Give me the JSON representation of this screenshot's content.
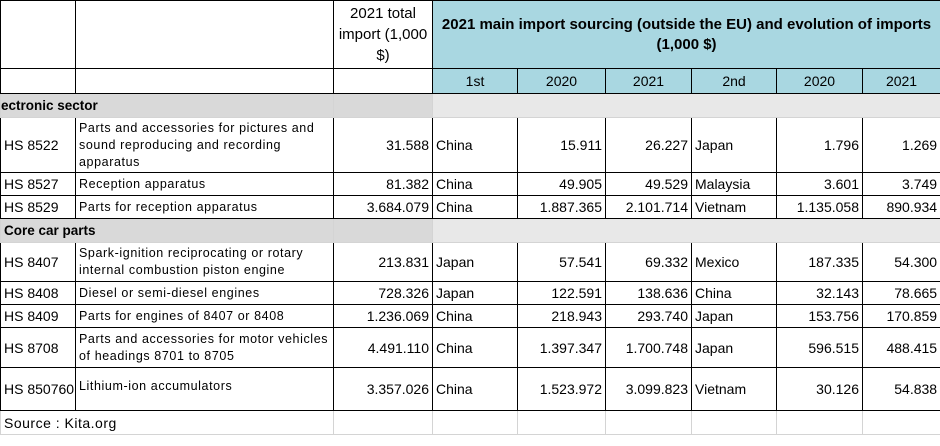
{
  "header": {
    "total_import": "2021 total import (1,000 $)",
    "main_title": "2021 main import sourcing (outside the EU) and evolution of imports (1,000 $)",
    "col_1st": "1st",
    "col_2020a": "2020",
    "col_2021a": "2021",
    "col_2nd": "2nd",
    "col_2020b": "2020",
    "col_2021b": "2021"
  },
  "sections": {
    "electronic": "ectronic sector",
    "car": "Core car parts"
  },
  "rows": [
    {
      "code": "HS 8522",
      "desc": "Parts and accessories for pictures and sound reproducing and recording apparatus",
      "total": "31.588",
      "first": "China",
      "f2020": "15.911",
      "f2021": "26.227",
      "second": "Japan",
      "s2020": "1.796",
      "s2021": "1.269"
    },
    {
      "code": "HS 8527",
      "desc": "Reception apparatus",
      "total": "81.382",
      "first": "China",
      "f2020": "49.905",
      "f2021": "49.529",
      "second": "Malaysia",
      "s2020": "3.601",
      "s2021": "3.749"
    },
    {
      "code": "HS 8529",
      "desc": "Parts for reception apparatus",
      "total": "3.684.079",
      "first": "China",
      "f2020": "1.887.365",
      "f2021": "2.101.714",
      "second": "Vietnam",
      "s2020": "1.135.058",
      "s2021": "890.934"
    },
    {
      "code": "HS 8407",
      "desc": "Spark-ignition reciprocating or rotary internal combustion piston engine",
      "total": "213.831",
      "first": "Japan",
      "f2020": "57.541",
      "f2021": "69.332",
      "second": "Mexico",
      "s2020": "187.335",
      "s2021": "54.300"
    },
    {
      "code": "HS 8408",
      "desc": "Diesel or semi-diesel engines",
      "total": "728.326",
      "first": "Japan",
      "f2020": "122.591",
      "f2021": "138.636",
      "second": "China",
      "s2020": "32.143",
      "s2021": "78.665"
    },
    {
      "code": "HS 8409",
      "desc": "Parts for engines of 8407 or 8408",
      "total": "1.236.069",
      "first": "China",
      "f2020": "218.943",
      "f2021": "293.740",
      "second": "Japan",
      "s2020": "153.756",
      "s2021": "170.859"
    },
    {
      "code": "HS 8708",
      "desc": "Parts and accessories for motor vehicles of headings 8701 to 8705",
      "total": "4.491.110",
      "first": "China",
      "f2020": "1.397.347",
      "f2021": "1.700.748",
      "second": "Japan",
      "s2020": "596.515",
      "s2021": "488.415"
    },
    {
      "code": "HS 850760",
      "desc": "Lithium-ion accumulators",
      "total": "3.357.026",
      "first": "China",
      "f2020": "1.523.972",
      "f2021": "3.099.823",
      "second": "Vietnam",
      "s2020": "30.126",
      "s2021": "54.838"
    }
  ],
  "source": "Source : Kita.org",
  "colors": {
    "header_bg": "#a9d7e1",
    "section_bg": "#d9d9d9"
  }
}
